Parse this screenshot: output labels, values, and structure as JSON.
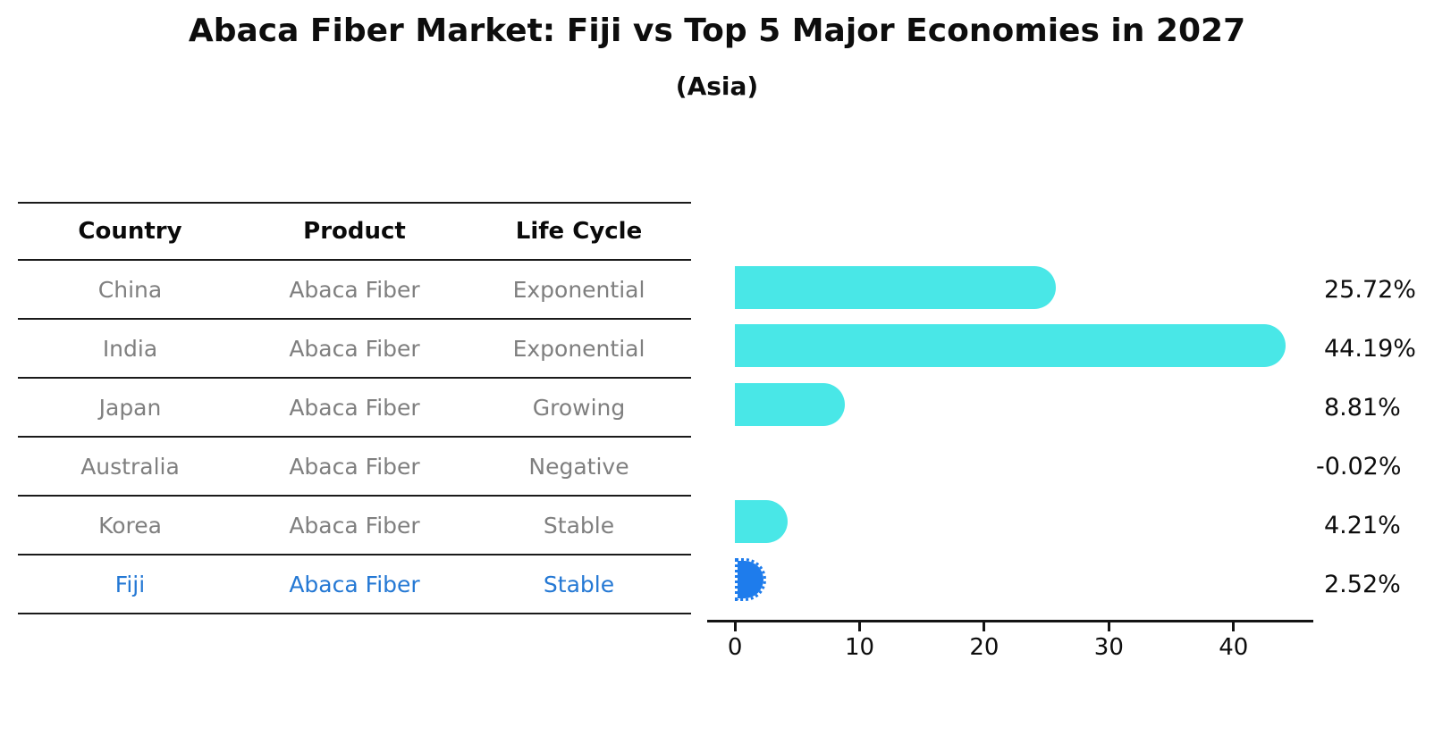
{
  "title": "Abaca Fiber Market: Fiji vs Top 5 Major Economies in 2027",
  "subtitle": "(Asia)",
  "table": {
    "headers": [
      "Country",
      "Product",
      "Life Cycle"
    ],
    "rows": [
      {
        "country": "China",
        "product": "Abaca Fiber",
        "life_cycle": "Exponential",
        "highlight": false
      },
      {
        "country": "India",
        "product": "Abaca Fiber",
        "life_cycle": "Exponential",
        "highlight": false
      },
      {
        "country": "Japan",
        "product": "Abaca Fiber",
        "life_cycle": "Growing",
        "highlight": false
      },
      {
        "country": "Australia",
        "product": "Abaca Fiber",
        "life_cycle": "Negative",
        "highlight": false
      },
      {
        "country": "Korea",
        "product": "Abaca Fiber",
        "life_cycle": "Stable",
        "highlight": false
      },
      {
        "country": "Fiji",
        "product": "Abaca Fiber",
        "life_cycle": "Stable",
        "highlight": true
      }
    ]
  },
  "chart_data": {
    "type": "bar",
    "orientation": "horizontal",
    "title": "Abaca Fiber Market: Fiji vs Top 5 Major Economies in 2027",
    "subtitle": "(Asia)",
    "categories": [
      "China",
      "India",
      "Japan",
      "Australia",
      "Korea",
      "Fiji"
    ],
    "values": [
      25.72,
      44.19,
      8.81,
      -0.02,
      4.21,
      2.52
    ],
    "value_labels": [
      "25.72%",
      "44.19%",
      "8.81%",
      "-0.02%",
      "4.21%",
      "2.52%"
    ],
    "xlabel": "",
    "ylabel": "",
    "xticks": [
      0,
      10,
      20,
      30,
      40
    ],
    "xlim": [
      -2.23,
      46.4
    ],
    "grid": false,
    "legend": false,
    "highlight_index": 5,
    "highlight_category": "Fiji"
  },
  "colors": {
    "background": "#FFFFFF",
    "bar": "#49E7E7",
    "highlight_bar": "#1E7CEC",
    "highlight_text": "#2478D4",
    "table_text": "#7F7F7F",
    "header_text": "#0A0A0A",
    "line": "#1A1A1A",
    "value_text": "#0D0D0D"
  }
}
